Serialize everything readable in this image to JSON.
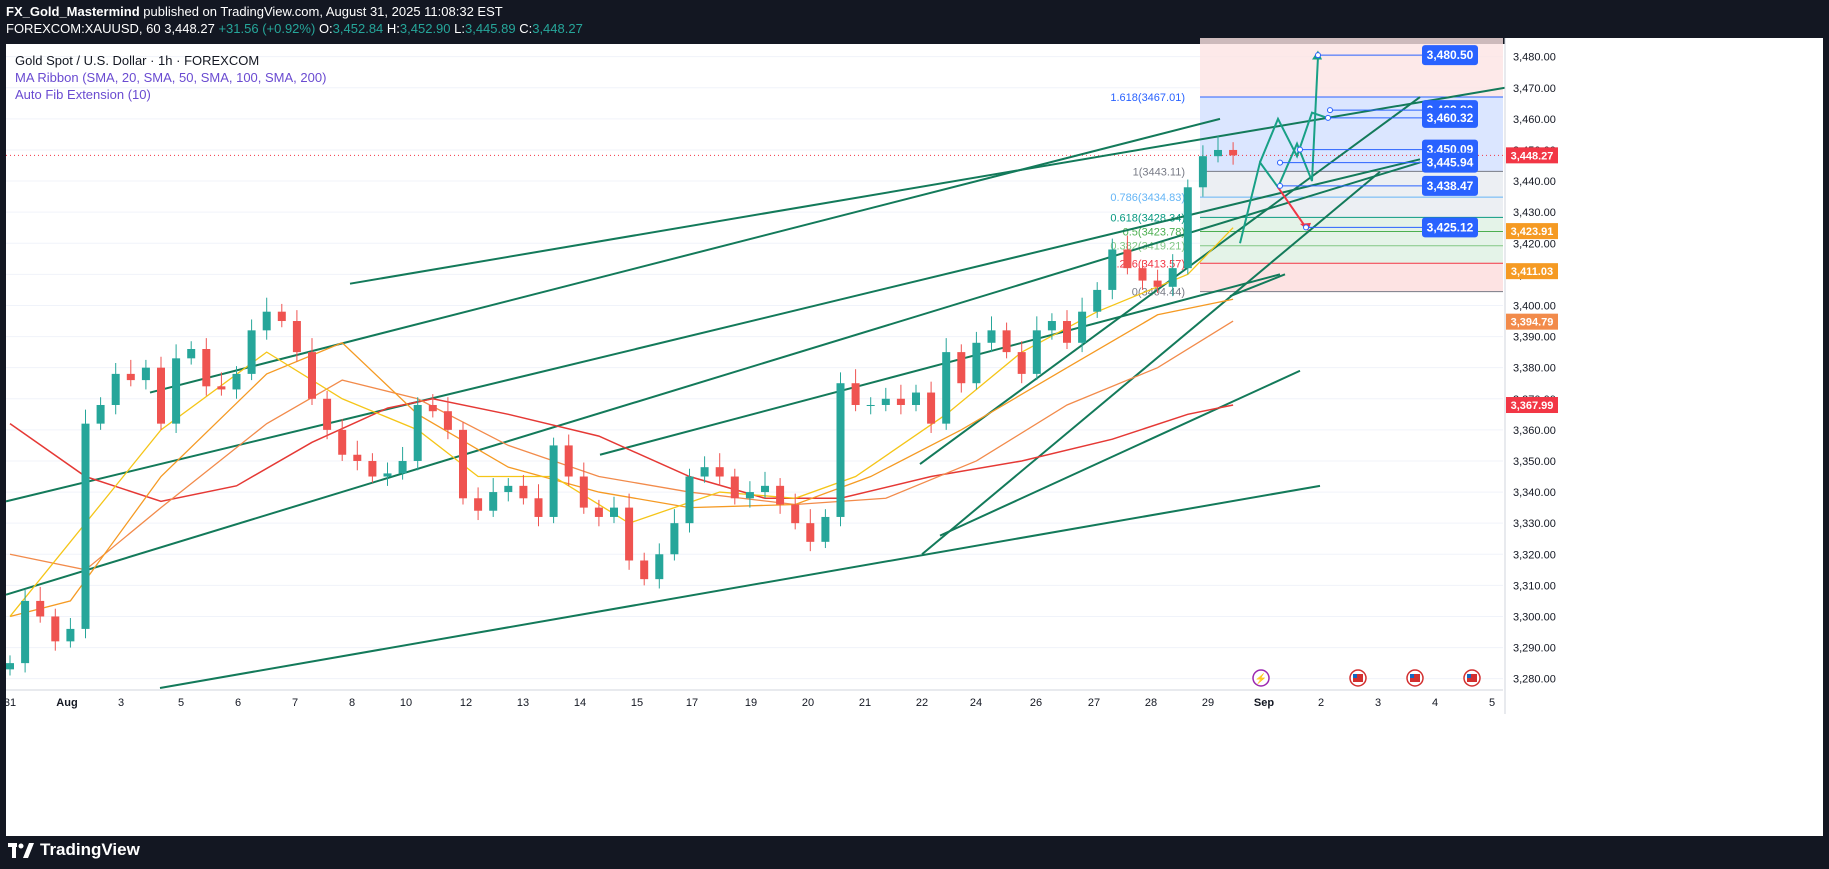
{
  "header": {
    "author": "FX_Gold_Mastermind",
    "published": "published on TradingView.com, August 31, 2025 11:08:32 EST",
    "symbol": "FOREXCOM:XAUUSD, 60",
    "last": "3,448.27",
    "change": "+31.56 (+0.92%)",
    "open_label": "O:",
    "open": "3,452.84",
    "high_label": "H:",
    "high": "3,452.90",
    "low_label": "L:",
    "low": "3,445.89",
    "close_label": "C:",
    "close": "3,448.27"
  },
  "legend": {
    "title": "Gold Spot / U.S. Dollar · 1h · FOREXCOM",
    "ma": "MA Ribbon (SMA, 20, SMA, 50, SMA, 100, SMA, 200)",
    "fib": "Auto Fib Extension (10)"
  },
  "footer": {
    "brand": "TradingView"
  },
  "colors": {
    "up": "#26a69a",
    "down": "#ef5350",
    "channel": "#137a5a",
    "ma20": "#f5c518",
    "ma50": "#f59a23",
    "ma100": "#f28b4b",
    "ma200": "#e53935",
    "target": "#2962ff",
    "fib_top": "#dbe6ff",
    "fib_mid": "#e4f3e8",
    "fib_low": "#fde3e3"
  },
  "chart_data": {
    "type": "candlestick",
    "ylim": [
      3277,
      3486
    ],
    "x_ticks": [
      "31",
      "Aug",
      "3",
      "5",
      "6",
      "7",
      "8",
      "10",
      "12",
      "13",
      "14",
      "15",
      "17",
      "19",
      "20",
      "21",
      "22",
      "24",
      "26",
      "27",
      "28",
      "29",
      "Sep",
      "2",
      "3",
      "4",
      "5"
    ],
    "y_ticks": [
      "3,480.00",
      "3,470.00",
      "3,460.00",
      "3,450.00",
      "3,440.00",
      "3,430.00",
      "3,420.00",
      "3,410.00",
      "3,400.00",
      "3,390.00",
      "3,380.00",
      "3,370.00",
      "3,360.00",
      "3,350.00",
      "3,340.00",
      "3,330.00",
      "3,320.00",
      "3,310.00",
      "3,300.00",
      "3,290.00",
      "3,280.00"
    ],
    "price_path": [
      [
        0,
        3285
      ],
      [
        1,
        3305
      ],
      [
        2,
        3300
      ],
      [
        3,
        3292
      ],
      [
        4,
        3296
      ],
      [
        5,
        3362
      ],
      [
        6,
        3368
      ],
      [
        7,
        3378
      ],
      [
        8,
        3376
      ],
      [
        9,
        3380
      ],
      [
        10,
        3362
      ],
      [
        11,
        3383
      ],
      [
        12,
        3386
      ],
      [
        13,
        3374
      ],
      [
        14,
        3373
      ],
      [
        15,
        3378
      ],
      [
        16,
        3392
      ],
      [
        17,
        3398
      ],
      [
        18,
        3395
      ],
      [
        19,
        3385
      ],
      [
        20,
        3370
      ],
      [
        21,
        3360
      ],
      [
        22,
        3352
      ],
      [
        23,
        3350
      ],
      [
        24,
        3345
      ],
      [
        25,
        3346
      ],
      [
        26,
        3350
      ],
      [
        27,
        3368
      ],
      [
        28,
        3366
      ],
      [
        29,
        3360
      ],
      [
        30,
        3338
      ],
      [
        31,
        3334
      ],
      [
        32,
        3340
      ],
      [
        33,
        3342
      ],
      [
        34,
        3338
      ],
      [
        35,
        3332
      ],
      [
        36,
        3355
      ],
      [
        37,
        3345
      ],
      [
        38,
        3335
      ],
      [
        39,
        3332
      ],
      [
        40,
        3335
      ],
      [
        41,
        3318
      ],
      [
        42,
        3312
      ],
      [
        43,
        3320
      ],
      [
        44,
        3330
      ],
      [
        45,
        3345
      ],
      [
        46,
        3348
      ],
      [
        47,
        3345
      ],
      [
        48,
        3338
      ],
      [
        49,
        3340
      ],
      [
        50,
        3342
      ],
      [
        51,
        3336
      ],
      [
        52,
        3330
      ],
      [
        53,
        3324
      ],
      [
        54,
        3332
      ],
      [
        55,
        3375
      ],
      [
        56,
        3368
      ],
      [
        57,
        3368
      ],
      [
        58,
        3370
      ],
      [
        59,
        3368
      ],
      [
        60,
        3372
      ],
      [
        61,
        3362
      ],
      [
        62,
        3385
      ],
      [
        63,
        3375
      ],
      [
        64,
        3388
      ],
      [
        65,
        3392
      ],
      [
        66,
        3385
      ],
      [
        67,
        3378
      ],
      [
        68,
        3392
      ],
      [
        69,
        3395
      ],
      [
        70,
        3388
      ],
      [
        71,
        3398
      ],
      [
        72,
        3405
      ],
      [
        73,
        3418
      ],
      [
        74,
        3412
      ],
      [
        75,
        3408
      ],
      [
        76,
        3406
      ],
      [
        77,
        3412
      ],
      [
        78,
        3438
      ],
      [
        79,
        3448
      ],
      [
        80,
        3450
      ],
      [
        81,
        3448.27
      ]
    ],
    "ma20": [
      [
        0,
        3300
      ],
      [
        10,
        3360
      ],
      [
        17,
        3385
      ],
      [
        22,
        3370
      ],
      [
        27,
        3360
      ],
      [
        31,
        3345
      ],
      [
        36,
        3345
      ],
      [
        41,
        3330
      ],
      [
        47,
        3340
      ],
      [
        52,
        3338
      ],
      [
        56,
        3345
      ],
      [
        62,
        3365
      ],
      [
        67,
        3385
      ],
      [
        72,
        3398
      ],
      [
        78,
        3410
      ],
      [
        81,
        3425
      ]
    ],
    "ma50": [
      [
        0,
        3300
      ],
      [
        4,
        3305
      ],
      [
        10,
        3345
      ],
      [
        17,
        3378
      ],
      [
        22,
        3388
      ],
      [
        27,
        3365
      ],
      [
        33,
        3348
      ],
      [
        39,
        3340
      ],
      [
        45,
        3335
      ],
      [
        52,
        3336
      ],
      [
        57,
        3345
      ],
      [
        63,
        3360
      ],
      [
        70,
        3380
      ],
      [
        76,
        3397
      ],
      [
        81,
        3402
      ]
    ],
    "ma100": [
      [
        0,
        3320
      ],
      [
        5,
        3315
      ],
      [
        10,
        3335
      ],
      [
        17,
        3362
      ],
      [
        22,
        3376
      ],
      [
        27,
        3370
      ],
      [
        33,
        3355
      ],
      [
        39,
        3345
      ],
      [
        45,
        3340
      ],
      [
        52,
        3336
      ],
      [
        58,
        3338
      ],
      [
        64,
        3350
      ],
      [
        70,
        3368
      ],
      [
        76,
        3380
      ],
      [
        81,
        3395
      ]
    ],
    "ma200": [
      [
        0,
        3362
      ],
      [
        5,
        3345
      ],
      [
        10,
        3337
      ],
      [
        15,
        3342
      ],
      [
        20,
        3356
      ],
      [
        25,
        3367
      ],
      [
        28,
        3370
      ],
      [
        33,
        3365
      ],
      [
        39,
        3358
      ],
      [
        45,
        3345
      ],
      [
        50,
        3338
      ],
      [
        55,
        3338
      ],
      [
        61,
        3345
      ],
      [
        67,
        3350
      ],
      [
        73,
        3357
      ],
      [
        78,
        3365
      ],
      [
        81,
        3368
      ]
    ],
    "fib_levels": [
      {
        "ratio": "1.618",
        "value": 3467.01,
        "label": "1.618(3467.01)",
        "color": "#2962ff"
      },
      {
        "ratio": "1",
        "value": 3443.11,
        "label": "1(3443.11)",
        "color": "#787b86"
      },
      {
        "ratio": "0.786",
        "value": 3434.83,
        "label": "0.786(3434.83)",
        "color": "#64b5f6"
      },
      {
        "ratio": "0.618",
        "value": 3428.34,
        "label": "0.618(3428.34)",
        "color": "#089981"
      },
      {
        "ratio": "0.5",
        "value": 3423.78,
        "label": "0.5(3423.78)",
        "color": "#4caf50"
      },
      {
        "ratio": "0.382",
        "value": 3419.21,
        "label": "0.382(3419.21)",
        "color": "#81c784"
      },
      {
        "ratio": "0.236",
        "value": 3413.57,
        "label": "0.236(3413.57)",
        "color": "#f23645"
      },
      {
        "ratio": "0",
        "value": 3404.44,
        "label": "0(3404.44)",
        "color": "#787b86"
      }
    ],
    "target_labels": [
      {
        "value": 3480.5,
        "text": "3,480.50"
      },
      {
        "value": 3462.8,
        "text": "3,462.80"
      },
      {
        "value": 3460.32,
        "text": "3,460.32"
      },
      {
        "value": 3450.09,
        "text": "3,450.09"
      },
      {
        "value": 3445.94,
        "text": "3,445.94"
      },
      {
        "value": 3438.47,
        "text": "3,438.47"
      },
      {
        "value": 3425.12,
        "text": "3,425.12"
      }
    ],
    "price_scale_badges": [
      {
        "value": 3448.27,
        "text": "3,448.27",
        "color": "#f23645"
      },
      {
        "value": 3423.91,
        "text": "3,423.91",
        "color": "#f59a23"
      },
      {
        "value": 3411.03,
        "text": "3,411.03",
        "color": "#f59a23"
      },
      {
        "value": 3394.79,
        "text": "3,394.79",
        "color": "#f28b4b"
      },
      {
        "value": 3367.99,
        "text": "3,367.99",
        "color": "#f23645"
      }
    ]
  }
}
